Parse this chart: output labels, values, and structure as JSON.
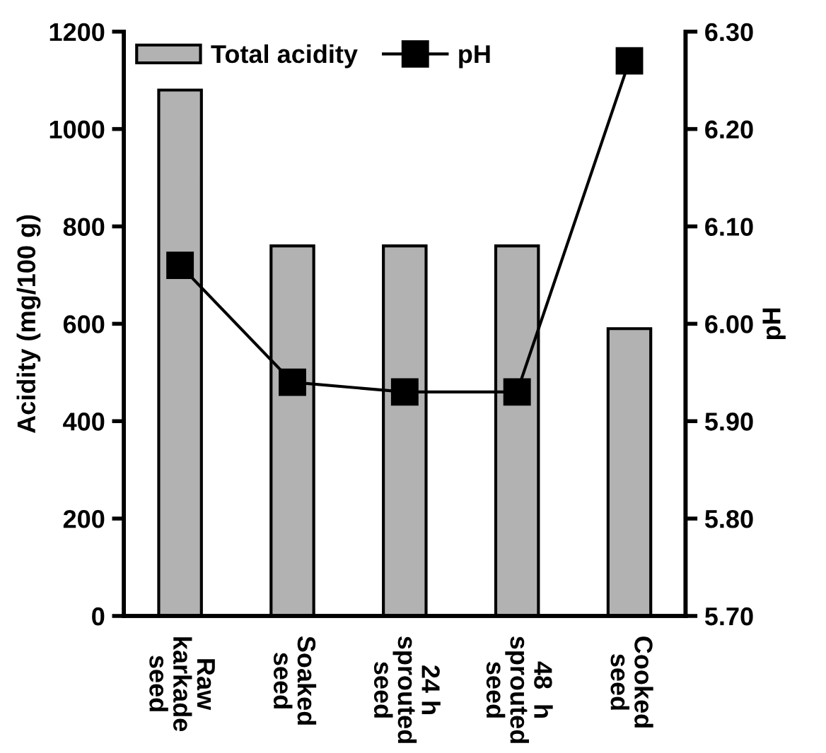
{
  "chart_data": {
    "type": "bar",
    "categories": [
      "Raw\nkarkade\nseed",
      "Soaked\nseed",
      "24 h\nsprouted\nseed",
      "48  h\nsprouted\nseed",
      "Cooked\nseed"
    ],
    "series": [
      {
        "name": "Total acidity",
        "color": "#b2b2b2",
        "values": [
          1080,
          760,
          760,
          760,
          590
        ]
      },
      {
        "name": "pH",
        "type": "line",
        "axis": "y2",
        "color": "#000000",
        "marker": "square",
        "line_style": "solid",
        "values": [
          6.06,
          5.94,
          5.93,
          5.93,
          6.27
        ]
      }
    ],
    "ylabel": "Acidity (mg/100 g)",
    "y2label": "pH",
    "ylim": [
      0,
      1200
    ],
    "yticks": [
      0,
      200,
      400,
      600,
      800,
      1000,
      1200
    ],
    "y2lim": [
      5.7,
      6.3
    ],
    "y2ticks": [
      {
        "value": 5.7,
        "label": "5.70"
      },
      {
        "value": 5.8,
        "label": "5.80"
      },
      {
        "value": 5.9,
        "label": "5.90"
      },
      {
        "value": 6.0,
        "label": "6.00"
      },
      {
        "value": 6.1,
        "label": "6.10"
      },
      {
        "value": 6.2,
        "label": "6.20"
      },
      {
        "value": 6.3,
        "label": "6.30"
      }
    ],
    "grid": false,
    "legend": "top left"
  }
}
